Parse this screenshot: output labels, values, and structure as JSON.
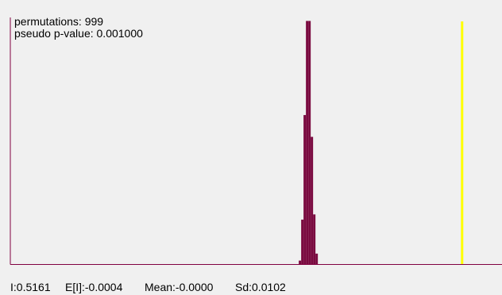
{
  "chart_data": {
    "type": "histogram",
    "annotations": [
      "permutations: 999",
      "pseudo p-value: 0.001000"
    ],
    "stats": [
      "I:0.5161",
      "E[I]:-0.0004",
      "Mean:-0.0000",
      "Sd:0.0102"
    ],
    "bins": [
      -0.032,
      -0.024,
      -0.016,
      -0.008,
      0,
      0.008,
      0.016,
      0.024,
      0.032
    ],
    "values": [
      4,
      51,
      171,
      279,
      279,
      146,
      57,
      12
    ],
    "color": "#7a0a40",
    "xlim": [
      -1.0,
      0.65
    ],
    "ylim": [
      0,
      283
    ],
    "marker_line": {
      "value": 0.5161,
      "color": "#ffff00"
    }
  }
}
